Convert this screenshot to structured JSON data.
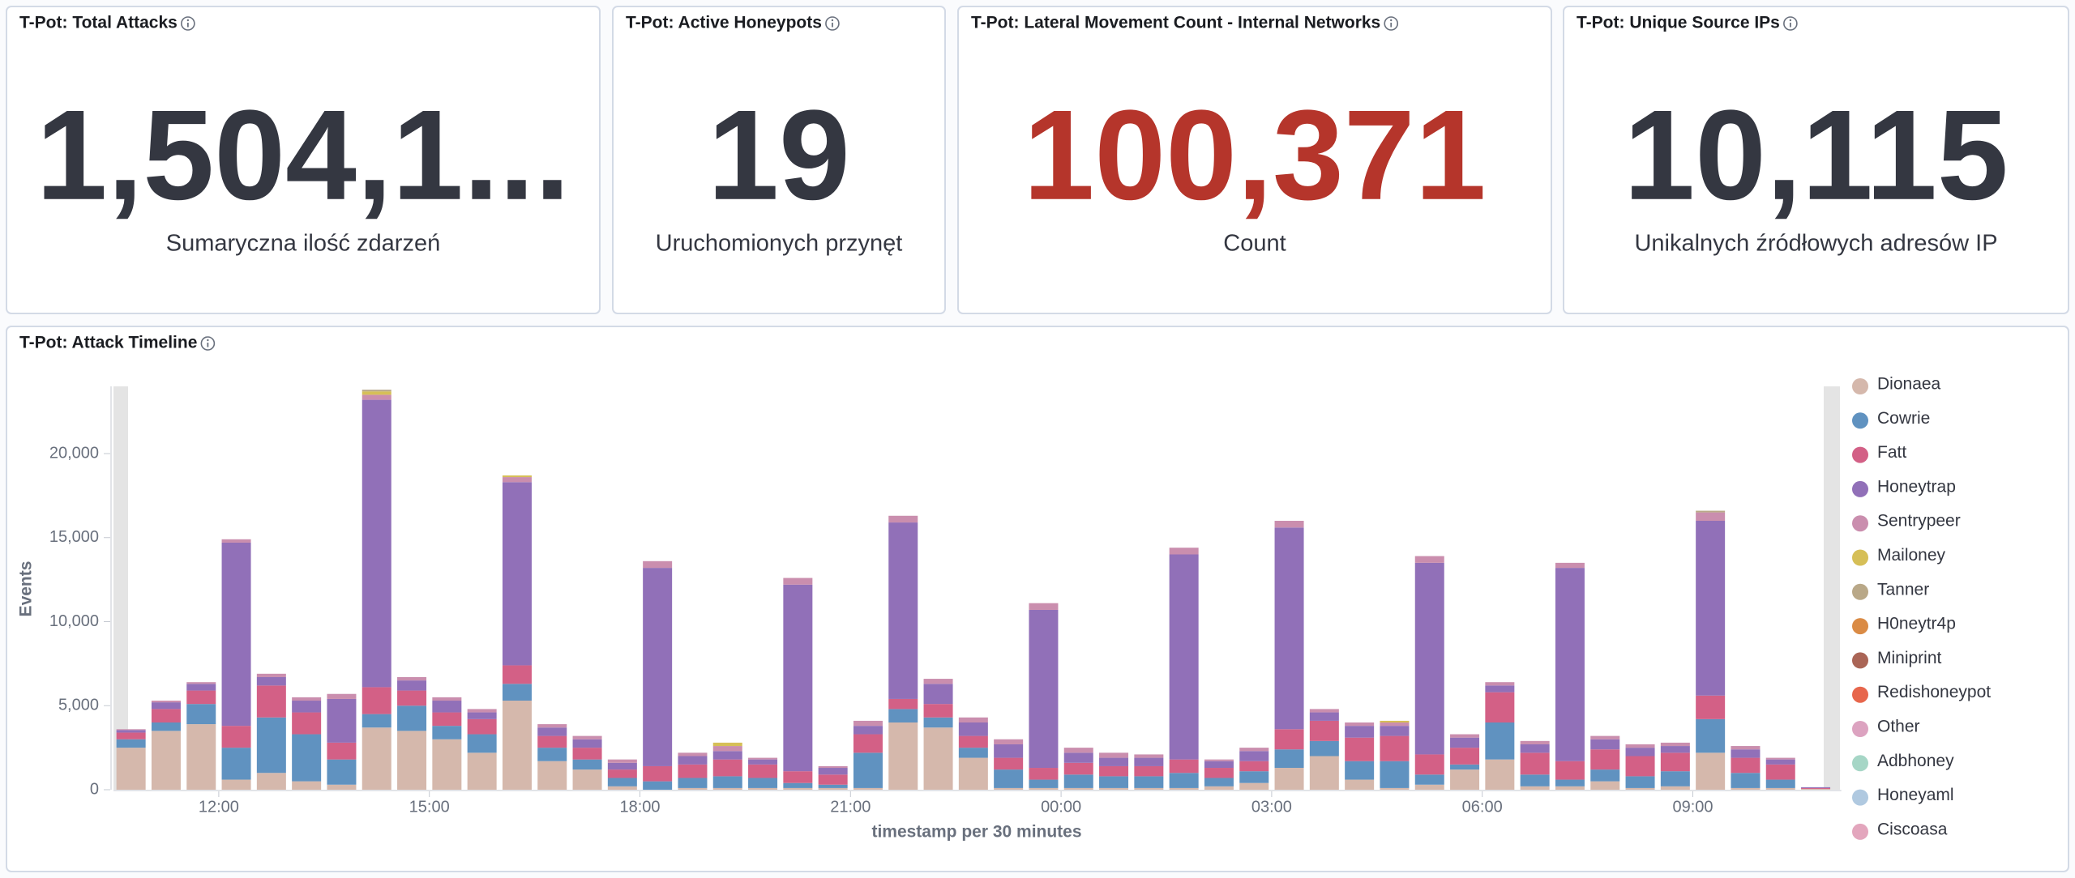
{
  "panels": [
    {
      "title": "T-Pot: Total Attacks",
      "value": "1,504,1...",
      "label": "Sumaryczna ilość zdarzeń",
      "color": "#343741"
    },
    {
      "title": "T-Pot: Active Honeypots",
      "value": "19",
      "label": "Uruchomionych przynęt",
      "color": "#343741"
    },
    {
      "title": "T-Pot: Lateral Movement Count - Internal Networks",
      "value": "100,371",
      "label": "Count",
      "color": "#b5352b"
    },
    {
      "title": "T-Pot: Unique Source IPs",
      "value": "10,115",
      "label": "Unikalnych źródłowych adresów IP",
      "color": "#343741"
    }
  ],
  "chart_data": {
    "type": "stacked-bar",
    "title": "T-Pot: Attack Timeline",
    "x_label": "timestamp per 30 minutes",
    "y_label": "Events",
    "categories": [
      null,
      null,
      null,
      "12:00",
      null,
      null,
      null,
      null,
      null,
      "15:00",
      null,
      null,
      null,
      null,
      null,
      "18:00",
      null,
      null,
      null,
      null,
      null,
      "21:00",
      null,
      null,
      null,
      null,
      null,
      "00:00",
      null,
      null,
      null,
      null,
      null,
      "03:00",
      null,
      null,
      null,
      null,
      null,
      "06:00",
      null,
      null,
      null,
      null,
      null,
      "09:00",
      null,
      null,
      null
    ],
    "ylim": [
      0,
      24000
    ],
    "yticks": [
      0,
      {
        "value": 5000,
        "label": "5,000"
      },
      {
        "value": 10000,
        "label": "10,000"
      },
      {
        "value": 15000,
        "label": "15,000"
      },
      {
        "value": 20000,
        "label": "20,000"
      }
    ],
    "grid": false,
    "legend": "right",
    "series": [
      {
        "name": "Dionaea",
        "color": "#d5b8ac",
        "values": [
          2500,
          3500,
          3900,
          600,
          1000,
          500,
          300,
          3700,
          3500,
          3000,
          2200,
          5300,
          1700,
          1200,
          200,
          0,
          100,
          100,
          100,
          100,
          100,
          100,
          4000,
          3700,
          1900,
          100,
          100,
          100,
          100,
          100,
          100,
          200,
          400,
          1300,
          2000,
          600,
          100,
          300,
          1200,
          1800,
          200,
          200,
          500,
          100,
          200,
          2200,
          100,
          100,
          50
        ]
      },
      {
        "name": "Cowrie",
        "color": "#6092c0",
        "values": [
          500,
          500,
          1200,
          1900,
          3300,
          2800,
          1500,
          800,
          1500,
          800,
          1100,
          1000,
          800,
          600,
          500,
          500,
          600,
          700,
          600,
          300,
          200,
          2100,
          800,
          600,
          600,
          1100,
          500,
          800,
          700,
          700,
          900,
          500,
          700,
          1100,
          900,
          1100,
          1600,
          600,
          300,
          2200,
          700,
          400,
          700,
          700,
          900,
          2000,
          900,
          500,
          0
        ]
      },
      {
        "name": "Fatt",
        "color": "#d36086",
        "values": [
          400,
          800,
          800,
          1300,
          1900,
          1300,
          1000,
          1600,
          900,
          800,
          900,
          1100,
          700,
          700,
          500,
          900,
          800,
          1000,
          800,
          700,
          600,
          1100,
          600,
          800,
          700,
          700,
          700,
          700,
          600,
          600,
          800,
          600,
          600,
          1200,
          1200,
          1400,
          1500,
          1200,
          1000,
          1800,
          1300,
          1100,
          1200,
          1200,
          1100,
          1400,
          900,
          900,
          50
        ]
      },
      {
        "name": "Honeytrap",
        "color": "#9170b8",
        "values": [
          150,
          400,
          400,
          10900,
          500,
          700,
          2600,
          17100,
          600,
          700,
          400,
          10900,
          500,
          500,
          400,
          11800,
          500,
          500,
          300,
          11100,
          400,
          500,
          10500,
          1200,
          800,
          800,
          9400,
          600,
          500,
          500,
          12200,
          400,
          600,
          12000,
          500,
          700,
          600,
          11400,
          600,
          400,
          500,
          11500,
          600,
          500,
          400,
          10400,
          500,
          300,
          50
        ]
      },
      {
        "name": "Sentrypeer",
        "color": "#ca8eae",
        "values": [
          50,
          100,
          100,
          200,
          200,
          200,
          300,
          300,
          200,
          200,
          200,
          300,
          200,
          200,
          200,
          400,
          200,
          300,
          100,
          400,
          100,
          300,
          400,
          300,
          300,
          300,
          400,
          300,
          300,
          200,
          400,
          100,
          200,
          400,
          200,
          200,
          200,
          400,
          200,
          200,
          200,
          300,
          200,
          200,
          200,
          500,
          200,
          100,
          0
        ]
      },
      {
        "name": "Mailoney",
        "color": "#d6bf57",
        "values": [
          0,
          0,
          0,
          0,
          0,
          0,
          0,
          200,
          0,
          0,
          0,
          100,
          0,
          0,
          0,
          0,
          0,
          200,
          0,
          0,
          0,
          0,
          0,
          0,
          0,
          0,
          0,
          0,
          0,
          0,
          0,
          0,
          0,
          0,
          0,
          0,
          100,
          0,
          0,
          0,
          0,
          0,
          0,
          0,
          0,
          0,
          0,
          0,
          0
        ]
      },
      {
        "name": "Tanner",
        "color": "#b9a888",
        "values": [
          0,
          0,
          0,
          0,
          0,
          0,
          0,
          100,
          0,
          0,
          0,
          0,
          0,
          0,
          0,
          0,
          0,
          0,
          0,
          0,
          0,
          0,
          0,
          0,
          0,
          0,
          0,
          0,
          0,
          0,
          0,
          0,
          0,
          0,
          0,
          0,
          0,
          0,
          0,
          0,
          0,
          0,
          0,
          0,
          0,
          100,
          0,
          0,
          0
        ]
      },
      {
        "name": "H0neytr4p",
        "color": "#da8b45",
        "values": [
          0,
          0,
          0,
          0,
          0,
          0,
          0,
          0,
          0,
          0,
          0,
          0,
          0,
          0,
          0,
          0,
          0,
          0,
          0,
          0,
          0,
          0,
          0,
          0,
          0,
          0,
          0,
          0,
          0,
          0,
          0,
          0,
          0,
          0,
          0,
          0,
          0,
          0,
          0,
          0,
          0,
          0,
          0,
          0,
          0,
          0,
          0,
          0,
          0
        ]
      },
      {
        "name": "Miniprint",
        "color": "#aa6556",
        "values": [
          0,
          0,
          0,
          0,
          0,
          0,
          0,
          0,
          0,
          0,
          0,
          0,
          0,
          0,
          0,
          0,
          0,
          0,
          0,
          0,
          0,
          0,
          0,
          0,
          0,
          0,
          0,
          0,
          0,
          0,
          0,
          0,
          0,
          0,
          0,
          0,
          0,
          0,
          0,
          0,
          0,
          0,
          0,
          0,
          0,
          0,
          0,
          0,
          0
        ]
      },
      {
        "name": "Redishoneypot",
        "color": "#e7664c",
        "values": [
          0,
          0,
          0,
          0,
          0,
          0,
          0,
          0,
          0,
          0,
          0,
          0,
          0,
          0,
          0,
          0,
          0,
          0,
          0,
          0,
          0,
          0,
          0,
          0,
          0,
          0,
          0,
          0,
          0,
          0,
          0,
          0,
          0,
          0,
          0,
          0,
          0,
          0,
          0,
          0,
          0,
          0,
          0,
          0,
          0,
          0,
          0,
          0,
          0
        ]
      },
      {
        "name": "Other",
        "color": "#dca3c0",
        "values": [
          0,
          0,
          0,
          0,
          0,
          0,
          0,
          0,
          0,
          0,
          0,
          0,
          0,
          0,
          0,
          0,
          0,
          0,
          0,
          0,
          0,
          0,
          0,
          0,
          0,
          0,
          0,
          0,
          0,
          0,
          0,
          0,
          0,
          0,
          0,
          0,
          0,
          0,
          0,
          0,
          0,
          0,
          0,
          0,
          0,
          0,
          0,
          0,
          0
        ]
      },
      {
        "name": "Adbhoney",
        "color": "#a6d6c6",
        "values": [
          0,
          0,
          0,
          0,
          0,
          0,
          0,
          0,
          0,
          0,
          0,
          0,
          0,
          0,
          0,
          0,
          0,
          0,
          0,
          0,
          0,
          0,
          0,
          0,
          0,
          0,
          0,
          0,
          0,
          0,
          0,
          0,
          0,
          0,
          0,
          0,
          0,
          0,
          0,
          0,
          0,
          0,
          0,
          0,
          0,
          0,
          0,
          0,
          0
        ]
      },
      {
        "name": "Honeyaml",
        "color": "#b0c9e0",
        "values": [
          0,
          0,
          0,
          0,
          0,
          0,
          0,
          0,
          0,
          0,
          0,
          0,
          0,
          0,
          0,
          0,
          0,
          0,
          0,
          0,
          0,
          0,
          0,
          0,
          0,
          0,
          0,
          0,
          0,
          0,
          0,
          0,
          0,
          0,
          0,
          0,
          0,
          0,
          0,
          0,
          0,
          0,
          0,
          0,
          0,
          0,
          0,
          0,
          0
        ]
      },
      {
        "name": "Ciscoasa",
        "color": "#e3a6bd",
        "values": [
          0,
          0,
          0,
          0,
          0,
          0,
          0,
          0,
          0,
          0,
          0,
          0,
          0,
          0,
          0,
          0,
          0,
          0,
          0,
          0,
          0,
          0,
          0,
          0,
          0,
          0,
          0,
          0,
          0,
          0,
          0,
          0,
          0,
          0,
          0,
          0,
          0,
          0,
          0,
          0,
          0,
          0,
          0,
          0,
          0,
          0,
          0,
          0,
          0
        ]
      }
    ]
  }
}
